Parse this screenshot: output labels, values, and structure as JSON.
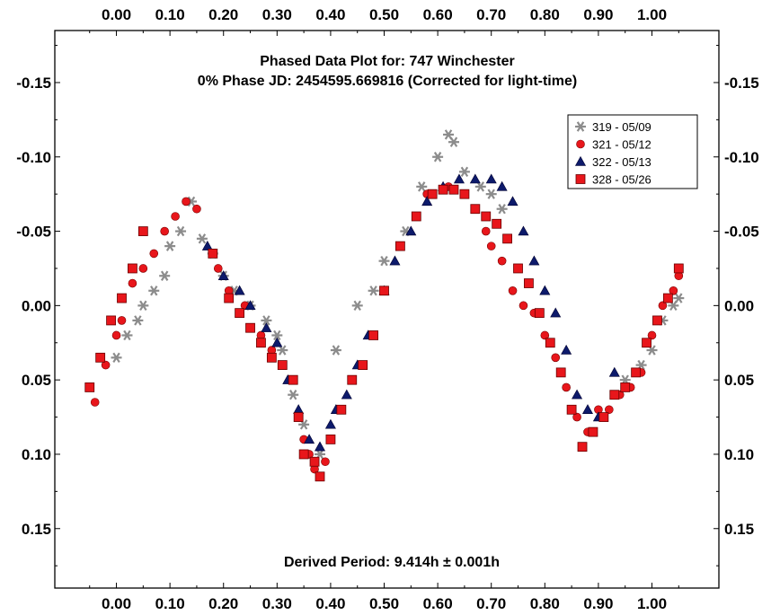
{
  "chart_data": {
    "type": "scatter",
    "title": "Phased Data Plot for: 747 Winchester",
    "subtitle": "0% Phase JD:  2454595.669816   (Corrected for light-time)",
    "annotation": "Derived Period: 9.414h ± 0.001h",
    "xlabel": "",
    "ylabel": "",
    "xlim": [
      -0.115,
      1.125
    ],
    "ylim": [
      0.19,
      -0.185
    ],
    "y_inverted": true,
    "grid": false,
    "legend_position": "top-right",
    "x_ticks": [
      "0.00",
      "0.10",
      "0.20",
      "0.30",
      "0.40",
      "0.50",
      "0.60",
      "0.70",
      "0.80",
      "0.90",
      "1.00"
    ],
    "x_tick_values": [
      0.0,
      0.1,
      0.2,
      0.3,
      0.4,
      0.5,
      0.6,
      0.7,
      0.8,
      0.9,
      1.0
    ],
    "y_ticks": [
      "-0.15",
      "-0.10",
      "-0.05",
      "0.00",
      "0.05",
      "0.10",
      "0.15"
    ],
    "y_tick_values": [
      -0.15,
      -0.1,
      -0.05,
      0.0,
      0.05,
      0.1,
      0.15
    ],
    "series": [
      {
        "name": "319 - 05/09",
        "marker": "asterisk",
        "color": "#8c8c8c",
        "points": [
          [
            0.0,
            0.035
          ],
          [
            0.02,
            0.02
          ],
          [
            0.04,
            0.01
          ],
          [
            0.05,
            0.0
          ],
          [
            0.07,
            -0.01
          ],
          [
            0.09,
            -0.02
          ],
          [
            0.1,
            -0.04
          ],
          [
            0.12,
            -0.05
          ],
          [
            0.14,
            -0.07
          ],
          [
            0.16,
            -0.045
          ],
          [
            0.18,
            -0.035
          ],
          [
            0.2,
            -0.02
          ],
          [
            0.22,
            -0.01
          ],
          [
            0.25,
            0.0
          ],
          [
            0.28,
            0.01
          ],
          [
            0.3,
            0.02
          ],
          [
            0.31,
            0.03
          ],
          [
            0.33,
            0.06
          ],
          [
            0.35,
            0.08
          ],
          [
            0.38,
            0.1
          ],
          [
            0.41,
            0.03
          ],
          [
            0.45,
            0.0
          ],
          [
            0.48,
            -0.01
          ],
          [
            0.5,
            -0.03
          ],
          [
            0.54,
            -0.05
          ],
          [
            0.57,
            -0.08
          ],
          [
            0.6,
            -0.1
          ],
          [
            0.62,
            -0.115
          ],
          [
            0.63,
            -0.11
          ],
          [
            0.65,
            -0.09
          ],
          [
            0.68,
            -0.08
          ],
          [
            0.7,
            -0.075
          ],
          [
            0.72,
            -0.065
          ],
          [
            0.95,
            0.05
          ],
          [
            0.98,
            0.04
          ],
          [
            1.0,
            0.03
          ],
          [
            1.02,
            0.01
          ],
          [
            1.04,
            0.0
          ],
          [
            1.05,
            -0.005
          ]
        ]
      },
      {
        "name": "321 - 05/12",
        "marker": "circle",
        "color": "#e8161b",
        "points": [
          [
            -0.04,
            0.065
          ],
          [
            -0.02,
            0.04
          ],
          [
            0.0,
            0.02
          ],
          [
            0.01,
            0.01
          ],
          [
            0.03,
            -0.015
          ],
          [
            0.05,
            -0.025
          ],
          [
            0.07,
            -0.035
          ],
          [
            0.09,
            -0.05
          ],
          [
            0.11,
            -0.06
          ],
          [
            0.13,
            -0.07
          ],
          [
            0.15,
            -0.065
          ],
          [
            0.19,
            -0.025
          ],
          [
            0.21,
            -0.01
          ],
          [
            0.24,
            0.0
          ],
          [
            0.27,
            0.02
          ],
          [
            0.29,
            0.03
          ],
          [
            0.31,
            0.04
          ],
          [
            0.35,
            0.09
          ],
          [
            0.36,
            0.1
          ],
          [
            0.37,
            0.11
          ],
          [
            0.39,
            0.105
          ],
          [
            0.58,
            -0.075
          ],
          [
            0.62,
            -0.08
          ],
          [
            0.65,
            -0.075
          ],
          [
            0.67,
            -0.065
          ],
          [
            0.69,
            -0.05
          ],
          [
            0.7,
            -0.04
          ],
          [
            0.72,
            -0.03
          ],
          [
            0.74,
            -0.01
          ],
          [
            0.76,
            0.0
          ],
          [
            0.78,
            0.005
          ],
          [
            0.8,
            0.02
          ],
          [
            0.82,
            0.035
          ],
          [
            0.84,
            0.055
          ],
          [
            0.86,
            0.075
          ],
          [
            0.88,
            0.085
          ],
          [
            0.9,
            0.07
          ],
          [
            0.92,
            0.07
          ],
          [
            0.94,
            0.06
          ],
          [
            0.96,
            0.055
          ],
          [
            0.98,
            0.045
          ],
          [
            1.0,
            0.02
          ],
          [
            1.02,
            0.0
          ],
          [
            1.04,
            -0.01
          ],
          [
            1.05,
            -0.02
          ]
        ]
      },
      {
        "name": "322 - 05/13",
        "marker": "triangle",
        "color": "#0d1a6b",
        "points": [
          [
            0.17,
            -0.04
          ],
          [
            0.2,
            -0.02
          ],
          [
            0.23,
            -0.01
          ],
          [
            0.25,
            0.0
          ],
          [
            0.28,
            0.015
          ],
          [
            0.3,
            0.025
          ],
          [
            0.32,
            0.05
          ],
          [
            0.34,
            0.07
          ],
          [
            0.36,
            0.09
          ],
          [
            0.38,
            0.095
          ],
          [
            0.4,
            0.08
          ],
          [
            0.41,
            0.07
          ],
          [
            0.43,
            0.06
          ],
          [
            0.45,
            0.04
          ],
          [
            0.47,
            0.02
          ],
          [
            0.5,
            -0.01
          ],
          [
            0.52,
            -0.03
          ],
          [
            0.55,
            -0.05
          ],
          [
            0.58,
            -0.07
          ],
          [
            0.61,
            -0.08
          ],
          [
            0.64,
            -0.085
          ],
          [
            0.67,
            -0.085
          ],
          [
            0.7,
            -0.085
          ],
          [
            0.72,
            -0.08
          ],
          [
            0.74,
            -0.07
          ],
          [
            0.76,
            -0.05
          ],
          [
            0.78,
            -0.03
          ],
          [
            0.8,
            -0.01
          ],
          [
            0.82,
            0.005
          ],
          [
            0.84,
            0.03
          ],
          [
            0.86,
            0.06
          ],
          [
            0.88,
            0.07
          ],
          [
            0.9,
            0.075
          ],
          [
            0.93,
            0.045
          ]
        ]
      },
      {
        "name": "328 - 05/26",
        "marker": "square",
        "color": "#e8161b",
        "points": [
          [
            -0.05,
            0.055
          ],
          [
            -0.03,
            0.035
          ],
          [
            -0.01,
            0.01
          ],
          [
            0.01,
            -0.005
          ],
          [
            0.03,
            -0.025
          ],
          [
            0.05,
            -0.05
          ],
          [
            0.18,
            -0.035
          ],
          [
            0.21,
            -0.005
          ],
          [
            0.23,
            0.005
          ],
          [
            0.25,
            0.015
          ],
          [
            0.27,
            0.025
          ],
          [
            0.29,
            0.035
          ],
          [
            0.31,
            0.04
          ],
          [
            0.33,
            0.05
          ],
          [
            0.34,
            0.075
          ],
          [
            0.35,
            0.1
          ],
          [
            0.37,
            0.105
          ],
          [
            0.38,
            0.115
          ],
          [
            0.4,
            0.09
          ],
          [
            0.42,
            0.07
          ],
          [
            0.44,
            0.05
          ],
          [
            0.46,
            0.04
          ],
          [
            0.48,
            0.02
          ],
          [
            0.5,
            -0.01
          ],
          [
            0.53,
            -0.04
          ],
          [
            0.56,
            -0.06
          ],
          [
            0.59,
            -0.075
          ],
          [
            0.61,
            -0.078
          ],
          [
            0.63,
            -0.078
          ],
          [
            0.65,
            -0.075
          ],
          [
            0.67,
            -0.065
          ],
          [
            0.69,
            -0.06
          ],
          [
            0.71,
            -0.055
          ],
          [
            0.73,
            -0.045
          ],
          [
            0.75,
            -0.025
          ],
          [
            0.77,
            -0.015
          ],
          [
            0.79,
            0.005
          ],
          [
            0.81,
            0.025
          ],
          [
            0.83,
            0.045
          ],
          [
            0.85,
            0.07
          ],
          [
            0.87,
            0.095
          ],
          [
            0.89,
            0.085
          ],
          [
            0.91,
            0.075
          ],
          [
            0.93,
            0.06
          ],
          [
            0.95,
            0.055
          ],
          [
            0.97,
            0.045
          ],
          [
            0.99,
            0.025
          ],
          [
            1.01,
            0.01
          ],
          [
            1.03,
            -0.005
          ],
          [
            1.05,
            -0.025
          ]
        ]
      }
    ]
  }
}
